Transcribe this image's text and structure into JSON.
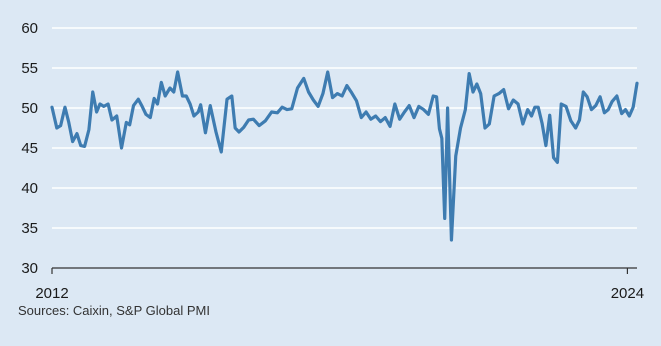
{
  "chart_data": {
    "type": "line",
    "title": "",
    "xlabel": "",
    "ylabel": "",
    "source": "Sources: Caixin, S&P Global PMI",
    "xlim": [
      2012.0,
      2024.2
    ],
    "ylim": [
      30,
      60
    ],
    "yticks": [
      "30",
      "35",
      "40",
      "45",
      "50",
      "55",
      "60"
    ],
    "xticks": [
      {
        "value": 2012.0,
        "label": "2012"
      },
      {
        "value": 2024.0,
        "label": "2024"
      }
    ],
    "grid": true,
    "legend": "none",
    "colors": {
      "background": "#dce8f4",
      "line": "#3e7cb1",
      "grid": "#ffffff",
      "axis": "#333333"
    },
    "series": [
      {
        "x": [
          2012.0,
          2012.1,
          2012.18,
          2012.27,
          2012.35,
          2012.43,
          2012.52,
          2012.6,
          2012.68,
          2012.77,
          2012.85,
          2012.93,
          2013.0,
          2013.08,
          2013.17,
          2013.25,
          2013.35,
          2013.45,
          2013.55,
          2013.62,
          2013.7,
          2013.8,
          2013.88,
          2013.96,
          2014.05,
          2014.13,
          2014.2,
          2014.28,
          2014.36,
          2014.46,
          2014.54,
          2014.62,
          2014.72,
          2014.8,
          2014.88,
          2014.96,
          2015.05,
          2015.1,
          2015.2,
          2015.3,
          2015.42,
          2015.53,
          2015.65,
          2015.75,
          2015.82,
          2015.9,
          2016.0,
          2016.1,
          2016.2,
          2016.32,
          2016.45,
          2016.58,
          2016.7,
          2016.8,
          2016.9,
          2017.0,
          2017.12,
          2017.25,
          2017.35,
          2017.45,
          2017.55,
          2017.65,
          2017.75,
          2017.85,
          2017.95,
          2018.05,
          2018.15,
          2018.25,
          2018.35,
          2018.45,
          2018.55,
          2018.65,
          2018.75,
          2018.85,
          2018.95,
          2019.05,
          2019.15,
          2019.25,
          2019.35,
          2019.45,
          2019.55,
          2019.65,
          2019.75,
          2019.85,
          2019.95,
          2020.02,
          2020.08,
          2020.13,
          2020.19,
          2020.25,
          2020.33,
          2020.42,
          2020.52,
          2020.62,
          2020.7,
          2020.78,
          2020.86,
          2020.94,
          2021.03,
          2021.12,
          2021.22,
          2021.32,
          2021.42,
          2021.52,
          2021.62,
          2021.72,
          2021.82,
          2021.92,
          2022.0,
          2022.07,
          2022.14,
          2022.22,
          2022.3,
          2022.38,
          2022.46,
          2022.54,
          2022.62,
          2022.72,
          2022.82,
          2022.92,
          2023.0,
          2023.08,
          2023.16,
          2023.25,
          2023.34,
          2023.43,
          2023.52,
          2023.6,
          2023.68,
          2023.78,
          2023.88,
          2023.96,
          2024.04,
          2024.12,
          2024.2
        ],
        "values": [
          50.1,
          47.5,
          47.8,
          50.1,
          48.2,
          45.8,
          46.8,
          45.3,
          45.2,
          47.3,
          52.0,
          49.5,
          50.5,
          50.2,
          50.5,
          48.5,
          49.0,
          45.0,
          48.2,
          47.9,
          50.3,
          51.1,
          50.2,
          49.2,
          48.8,
          51.2,
          50.5,
          53.2,
          51.5,
          52.5,
          52.0,
          54.5,
          51.5,
          51.5,
          50.5,
          49.0,
          49.5,
          50.4,
          46.9,
          50.3,
          47.0,
          44.5,
          51.1,
          51.5,
          47.5,
          47.0,
          47.6,
          48.5,
          48.6,
          47.8,
          48.4,
          49.5,
          49.4,
          50.1,
          49.8,
          49.9,
          52.5,
          53.7,
          52.0,
          51.0,
          50.2,
          51.8,
          54.5,
          51.3,
          51.8,
          51.5,
          52.8,
          51.9,
          50.9,
          48.8,
          49.5,
          48.6,
          49.0,
          48.3,
          48.8,
          47.7,
          50.5,
          48.6,
          49.5,
          50.3,
          48.8,
          50.2,
          49.8,
          49.2,
          51.5,
          51.4,
          47.4,
          46.2,
          36.2,
          50.0,
          33.5,
          44.0,
          47.5,
          49.8,
          54.3,
          52.0,
          53.0,
          51.8,
          47.5,
          48.0,
          51.5,
          51.8,
          52.3,
          49.9,
          51.0,
          50.5,
          48.0,
          49.8,
          49.0,
          50.1,
          50.1,
          48.1,
          45.3,
          49.1,
          43.8,
          43.2,
          50.5,
          50.2,
          48.4,
          47.5,
          48.5,
          52.0,
          51.4,
          49.8,
          50.3,
          51.4,
          49.4,
          49.8,
          50.8,
          51.5,
          49.3,
          49.8,
          49.0,
          50.1,
          53.1
        ]
      }
    ]
  }
}
